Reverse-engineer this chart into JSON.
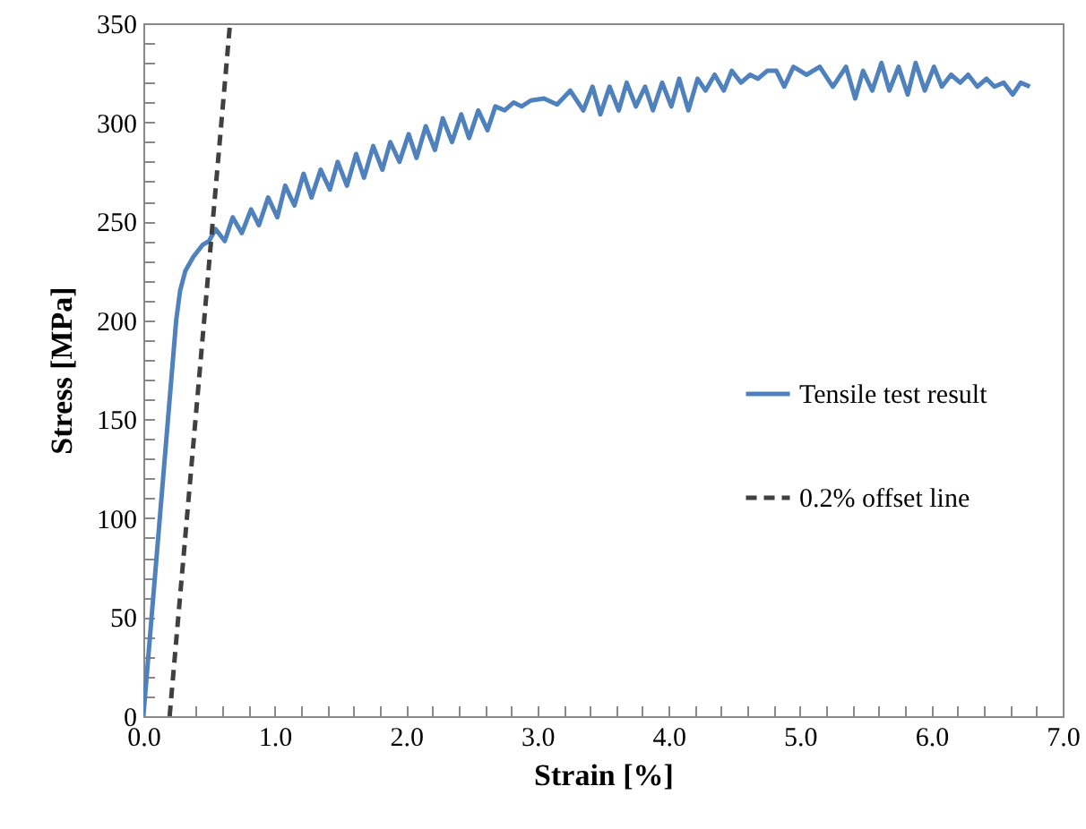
{
  "chart_data": {
    "type": "line",
    "xlabel": "Strain [%]",
    "ylabel": "Stress [MPa]",
    "xlim": [
      0,
      7
    ],
    "ylim": [
      0,
      350
    ],
    "xticks": [
      {
        "value": 0,
        "label": "0.0"
      },
      {
        "value": 0.2,
        "label": null
      },
      {
        "value": 0.4,
        "label": null
      },
      {
        "value": 0.6,
        "label": null
      },
      {
        "value": 0.8,
        "label": null
      },
      {
        "value": 1,
        "label": "1.0"
      },
      {
        "value": 1.2,
        "label": null
      },
      {
        "value": 1.4,
        "label": null
      },
      {
        "value": 1.6,
        "label": null
      },
      {
        "value": 1.8,
        "label": null
      },
      {
        "value": 2,
        "label": "2.0"
      },
      {
        "value": 2.2,
        "label": null
      },
      {
        "value": 2.4,
        "label": null
      },
      {
        "value": 2.6,
        "label": null
      },
      {
        "value": 2.8,
        "label": null
      },
      {
        "value": 3,
        "label": "3.0"
      },
      {
        "value": 3.2,
        "label": null
      },
      {
        "value": 3.4,
        "label": null
      },
      {
        "value": 3.6,
        "label": null
      },
      {
        "value": 3.8,
        "label": null
      },
      {
        "value": 4,
        "label": "4.0"
      },
      {
        "value": 4.2,
        "label": null
      },
      {
        "value": 4.4,
        "label": null
      },
      {
        "value": 4.6,
        "label": null
      },
      {
        "value": 4.8,
        "label": null
      },
      {
        "value": 5,
        "label": "5.0"
      },
      {
        "value": 5.2,
        "label": null
      },
      {
        "value": 5.4,
        "label": null
      },
      {
        "value": 5.6,
        "label": null
      },
      {
        "value": 5.8,
        "label": null
      },
      {
        "value": 6,
        "label": "6.0"
      },
      {
        "value": 6.2,
        "label": null
      },
      {
        "value": 6.4,
        "label": null
      },
      {
        "value": 6.6,
        "label": null
      },
      {
        "value": 6.8,
        "label": null
      },
      {
        "value": 7,
        "label": "7.0"
      }
    ],
    "yticks": [
      0,
      {
        "value": 10,
        "label": null
      },
      {
        "value": 20,
        "label": null
      },
      {
        "value": 30,
        "label": null
      },
      {
        "value": 40,
        "label": null
      },
      50,
      {
        "value": 60,
        "label": null
      },
      {
        "value": 70,
        "label": null
      },
      {
        "value": 80,
        "label": null
      },
      {
        "value": 90,
        "label": null
      },
      100,
      {
        "value": 110,
        "label": null
      },
      {
        "value": 120,
        "label": null
      },
      {
        "value": 130,
        "label": null
      },
      {
        "value": 140,
        "label": null
      },
      150,
      {
        "value": 160,
        "label": null
      },
      {
        "value": 170,
        "label": null
      },
      {
        "value": 180,
        "label": null
      },
      {
        "value": 190,
        "label": null
      },
      200,
      {
        "value": 210,
        "label": null
      },
      {
        "value": 220,
        "label": null
      },
      {
        "value": 230,
        "label": null
      },
      {
        "value": 240,
        "label": null
      },
      250,
      {
        "value": 260,
        "label": null
      },
      {
        "value": 270,
        "label": null
      },
      {
        "value": 280,
        "label": null
      },
      {
        "value": 290,
        "label": null
      },
      300,
      {
        "value": 310,
        "label": null
      },
      {
        "value": 320,
        "label": null
      },
      {
        "value": 330,
        "label": null
      },
      {
        "value": 340,
        "label": null
      },
      350
    ],
    "legend": "right",
    "grid": false,
    "series": [
      {
        "name": "Tensile test result",
        "color": "#4f81bd",
        "line_style": "solid",
        "x": [
          0,
          0.05,
          0.1,
          0.15,
          0.2,
          0.25,
          0.28,
          0.32,
          0.38,
          0.45,
          0.5,
          0.55,
          0.62,
          0.68,
          0.75,
          0.82,
          0.88,
          0.95,
          1.02,
          1.08,
          1.15,
          1.22,
          1.28,
          1.35,
          1.42,
          1.48,
          1.55,
          1.62,
          1.68,
          1.75,
          1.82,
          1.88,
          1.95,
          2.02,
          2.08,
          2.15,
          2.22,
          2.28,
          2.35,
          2.42,
          2.48,
          2.55,
          2.62,
          2.68,
          2.75,
          2.82,
          2.88,
          2.95,
          3.05,
          3.15,
          3.25,
          3.35,
          3.42,
          3.48,
          3.55,
          3.62,
          3.68,
          3.75,
          3.82,
          3.88,
          3.95,
          4.02,
          4.08,
          4.15,
          4.22,
          4.28,
          4.35,
          4.42,
          4.48,
          4.55,
          4.62,
          4.68,
          4.75,
          4.82,
          4.88,
          4.95,
          5.05,
          5.15,
          5.25,
          5.35,
          5.42,
          5.48,
          5.55,
          5.62,
          5.68,
          5.75,
          5.82,
          5.88,
          5.95,
          6.02,
          6.08,
          6.15,
          6.22,
          6.28,
          6.35,
          6.42,
          6.48,
          6.55,
          6.62,
          6.68,
          6.75
        ],
        "values": [
          0,
          40,
          80,
          120,
          160,
          200,
          215,
          225,
          232,
          238,
          240,
          246,
          240,
          252,
          244,
          256,
          248,
          262,
          252,
          268,
          258,
          274,
          262,
          276,
          266,
          280,
          268,
          284,
          272,
          288,
          276,
          290,
          280,
          294,
          282,
          298,
          286,
          302,
          290,
          304,
          292,
          306,
          296,
          308,
          306,
          310,
          308,
          311,
          312,
          309,
          316,
          306,
          318,
          304,
          318,
          306,
          320,
          308,
          318,
          306,
          320,
          308,
          322,
          306,
          322,
          316,
          324,
          316,
          326,
          320,
          324,
          322,
          326,
          326,
          318,
          328,
          324,
          328,
          318,
          328,
          312,
          326,
          316,
          330,
          316,
          328,
          314,
          330,
          316,
          328,
          318,
          324,
          320,
          324,
          318,
          322,
          318,
          320,
          314,
          320,
          318
        ]
      },
      {
        "name": "0.2% offset line",
        "color": "#404040",
        "line_style": "dashed",
        "x": [
          0.2,
          0.66
        ],
        "values": [
          0,
          350
        ]
      }
    ]
  }
}
